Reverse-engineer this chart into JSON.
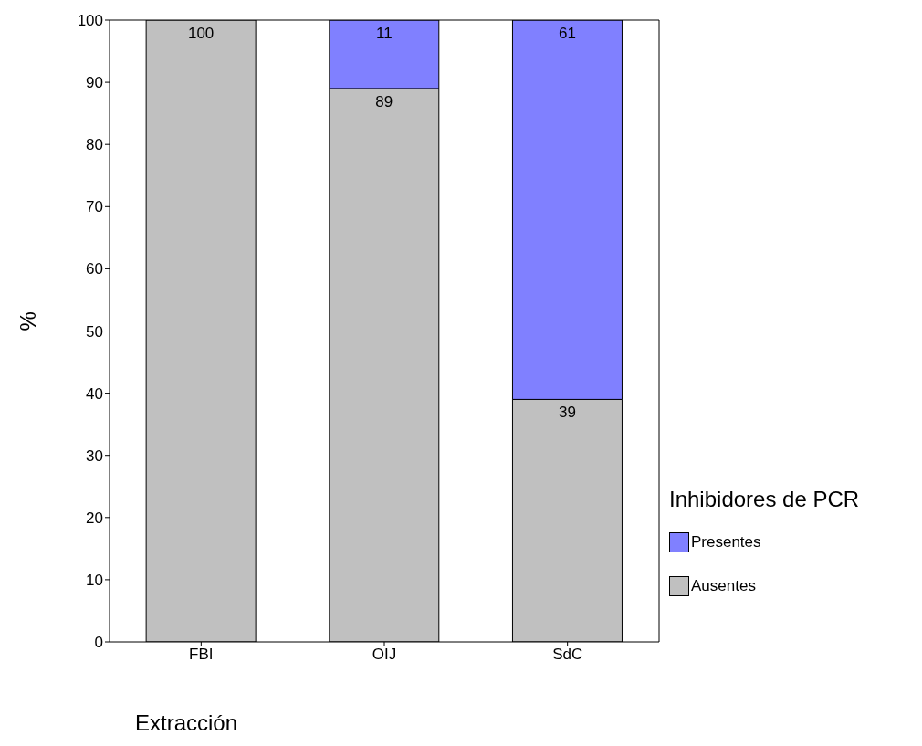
{
  "chart_data": {
    "type": "bar",
    "stacked": true,
    "xlabel": "Extracción",
    "ylabel": "%",
    "legend_title": "Inhibidores de PCR",
    "legend": "right",
    "categories": [
      "FBI",
      "OIJ",
      "SdC"
    ],
    "series": [
      {
        "name": "Ausentes",
        "color": "#c0c0c0",
        "values": [
          100,
          89,
          39
        ],
        "value_labels": [
          "100",
          "89",
          "39"
        ]
      },
      {
        "name": "Presentes",
        "color": "#8080ff",
        "values": [
          0,
          11,
          61
        ],
        "value_labels": [
          null,
          "11",
          "61"
        ]
      }
    ],
    "ylim": [
      0,
      100
    ],
    "yticks": [
      0,
      10,
      20,
      30,
      40,
      50,
      60,
      70,
      80,
      90,
      100
    ],
    "grid": false
  }
}
